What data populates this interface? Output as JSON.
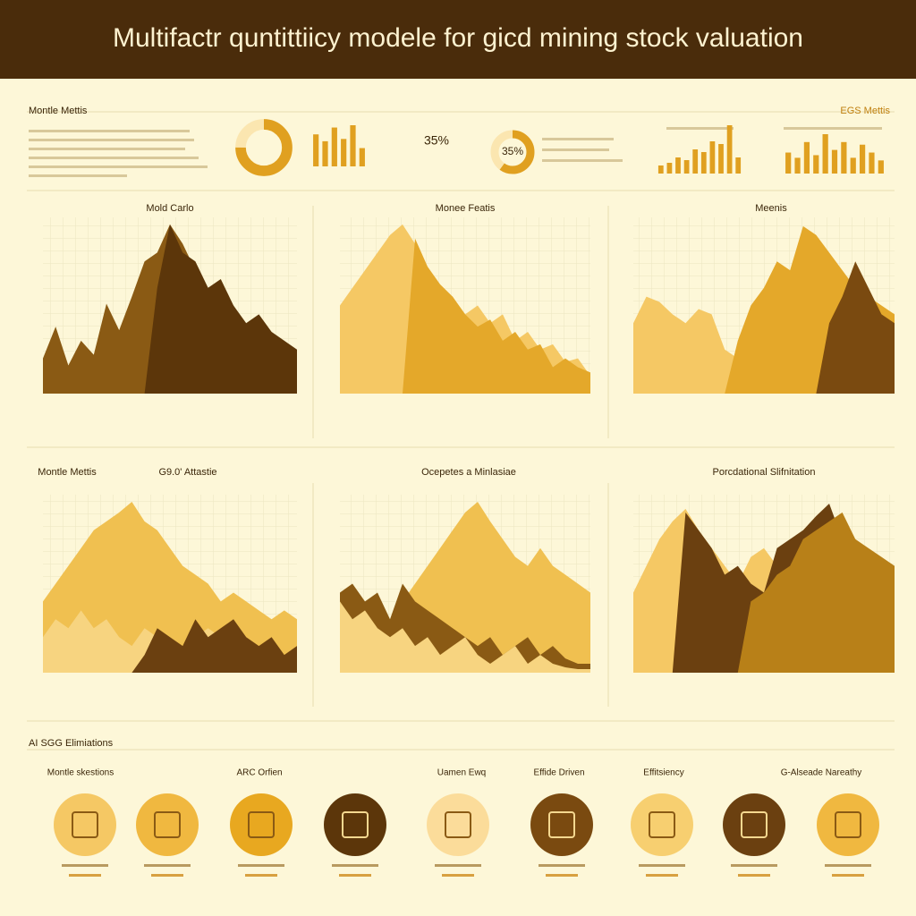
{
  "header": {
    "title": "Multifactr quntittiicy modele for gicd mining stock valuation"
  },
  "top_strip": {
    "left_label": "Montle Mettis",
    "highlight": "35%",
    "right_label": "EGS Mettis"
  },
  "chart_data": [
    {
      "type": "donut",
      "values": [
        75,
        25
      ],
      "colors": [
        "#e0a020",
        "#fbe6b0"
      ]
    },
    {
      "type": "bar",
      "values": [
        70,
        55,
        85,
        60,
        90,
        40
      ],
      "color": "#e0a020"
    },
    {
      "type": "donut",
      "values": [
        60,
        40
      ],
      "colors": [
        "#e0a020",
        "#fbe6b0"
      ],
      "center_label": "35%"
    },
    {
      "type": "bar",
      "values": [
        15,
        20,
        30,
        25,
        45,
        40,
        60,
        55,
        90,
        30
      ],
      "color": "#e0a020"
    },
    {
      "type": "bar",
      "values": [
        40,
        30,
        60,
        35,
        75,
        45,
        60,
        30,
        55,
        40,
        25
      ],
      "color": "#e0a020"
    },
    {
      "type": "area",
      "title": "Mold Carlo",
      "xlim": [
        0,
        20
      ],
      "ylim": [
        0,
        100
      ],
      "x": [
        0,
        1,
        2,
        3,
        4,
        5,
        6,
        7,
        8,
        9,
        10,
        11,
        12,
        13,
        14,
        15,
        16,
        17,
        18,
        19,
        20
      ],
      "series": [
        {
          "color": "#8a5a14",
          "values": [
            20,
            38,
            16,
            30,
            22,
            51,
            36,
            55,
            75,
            80,
            96,
            85,
            70,
            60,
            55,
            50,
            35,
            42,
            25,
            30,
            20
          ]
        },
        {
          "color": "#5c360a",
          "values": [
            0,
            0,
            0,
            0,
            0,
            0,
            0,
            0,
            0,
            60,
            96,
            80,
            75,
            60,
            65,
            50,
            40,
            45,
            35,
            30,
            25
          ]
        }
      ]
    },
    {
      "type": "area",
      "title": "Monee Featis",
      "xlim": [
        0,
        20
      ],
      "ylim": [
        0,
        100
      ],
      "x": [
        0,
        1,
        2,
        3,
        4,
        5,
        6,
        7,
        8,
        9,
        10,
        11,
        12,
        13,
        14,
        15,
        16,
        17,
        18,
        19,
        20
      ],
      "series": [
        {
          "color": "#f5c864",
          "values": [
            50,
            60,
            70,
            80,
            90,
            96,
            85,
            70,
            60,
            55,
            45,
            50,
            40,
            45,
            30,
            35,
            25,
            28,
            18,
            20,
            10
          ]
        },
        {
          "color": "#e4a82a",
          "values": [
            0,
            0,
            0,
            0,
            0,
            0,
            88,
            72,
            62,
            55,
            45,
            38,
            42,
            30,
            35,
            25,
            28,
            15,
            20,
            15,
            12
          ]
        }
      ]
    },
    {
      "type": "area",
      "title": "Meenis",
      "xlim": [
        0,
        20
      ],
      "ylim": [
        0,
        100
      ],
      "x": [
        0,
        1,
        2,
        3,
        4,
        5,
        6,
        7,
        8,
        9,
        10,
        11,
        12,
        13,
        14,
        15,
        16,
        17,
        18,
        19,
        20
      ],
      "series": [
        {
          "color": "#f5c864",
          "values": [
            40,
            55,
            52,
            45,
            40,
            48,
            45,
            25,
            20,
            15,
            30,
            50,
            70,
            85,
            80,
            60,
            50,
            40,
            45,
            30,
            30
          ]
        },
        {
          "color": "#e4a82a",
          "values": [
            0,
            0,
            0,
            0,
            0,
            0,
            0,
            0,
            30,
            50,
            60,
            75,
            70,
            95,
            90,
            80,
            70,
            60,
            55,
            50,
            45
          ]
        },
        {
          "color": "#7a4a10",
          "values": [
            0,
            0,
            0,
            0,
            0,
            0,
            0,
            0,
            0,
            0,
            0,
            0,
            0,
            0,
            0,
            40,
            55,
            75,
            60,
            45,
            40
          ]
        }
      ]
    },
    {
      "type": "area",
      "title": "Montle Mettis",
      "subtitle": "G9.0' Attastie",
      "xlim": [
        0,
        20
      ],
      "ylim": [
        0,
        100
      ],
      "x": [
        0,
        1,
        2,
        3,
        4,
        5,
        6,
        7,
        8,
        9,
        10,
        11,
        12,
        13,
        14,
        15,
        16,
        17,
        18,
        19,
        20
      ],
      "series": [
        {
          "color": "#f0c050",
          "values": [
            40,
            50,
            60,
            70,
            80,
            85,
            90,
            96,
            85,
            80,
            70,
            60,
            55,
            50,
            40,
            45,
            40,
            35,
            30,
            35,
            30
          ]
        },
        {
          "color": "#f7d480",
          "values": [
            20,
            30,
            25,
            35,
            25,
            30,
            20,
            15,
            25,
            20,
            10,
            15,
            20,
            25,
            20,
            15,
            20,
            10,
            15,
            10,
            10
          ]
        },
        {
          "color": "#6b4010",
          "values": [
            0,
            0,
            0,
            0,
            0,
            0,
            0,
            0,
            10,
            25,
            20,
            15,
            30,
            20,
            25,
            30,
            20,
            15,
            20,
            10,
            15
          ]
        }
      ]
    },
    {
      "type": "area",
      "title": "Ocepetes a Minlasiae",
      "xlim": [
        0,
        20
      ],
      "ylim": [
        0,
        100
      ],
      "x": [
        0,
        1,
        2,
        3,
        4,
        5,
        6,
        7,
        8,
        9,
        10,
        11,
        12,
        13,
        14,
        15,
        16,
        17,
        18,
        19,
        20
      ],
      "series": [
        {
          "color": "#f0c050",
          "values": [
            0,
            0,
            0,
            0,
            0,
            40,
            50,
            60,
            70,
            80,
            90,
            96,
            85,
            75,
            65,
            60,
            70,
            60,
            55,
            50,
            45
          ]
        },
        {
          "color": "#8a5a14",
          "values": [
            45,
            50,
            40,
            45,
            30,
            50,
            40,
            35,
            30,
            25,
            20,
            15,
            20,
            10,
            15,
            20,
            10,
            15,
            8,
            5,
            5
          ]
        },
        {
          "color": "#f7d480",
          "values": [
            40,
            30,
            35,
            25,
            20,
            25,
            15,
            20,
            10,
            15,
            20,
            10,
            5,
            10,
            15,
            5,
            10,
            5,
            3,
            2,
            2
          ]
        }
      ]
    },
    {
      "type": "area",
      "title": "Porcdational Slifnitation",
      "xlim": [
        0,
        20
      ],
      "ylim": [
        0,
        100
      ],
      "x": [
        0,
        1,
        2,
        3,
        4,
        5,
        6,
        7,
        8,
        9,
        10,
        11,
        12,
        13,
        14,
        15,
        16,
        17,
        18,
        19,
        20
      ],
      "series": [
        {
          "color": "#f5c864",
          "values": [
            45,
            60,
            75,
            85,
            92,
            80,
            70,
            60,
            50,
            65,
            70,
            60,
            55,
            50,
            45,
            40,
            35,
            30,
            25,
            20,
            15
          ]
        },
        {
          "color": "#6b4010",
          "values": [
            0,
            0,
            0,
            0,
            90,
            80,
            70,
            55,
            60,
            50,
            45,
            70,
            75,
            80,
            88,
            95,
            75,
            70,
            60,
            55,
            50
          ]
        },
        {
          "color": "#b88018",
          "values": [
            0,
            0,
            0,
            0,
            0,
            0,
            0,
            0,
            0,
            40,
            45,
            55,
            60,
            75,
            80,
            85,
            90,
            75,
            70,
            65,
            60
          ]
        }
      ]
    }
  ],
  "bottom": {
    "title": "AI SGG Elimiations",
    "labels": [
      "Montle skestions",
      "ARC Orfien",
      "Uamen Ewq",
      "Effide Driven",
      "Effitsiency",
      "G-Alseade Nareathy"
    ]
  }
}
